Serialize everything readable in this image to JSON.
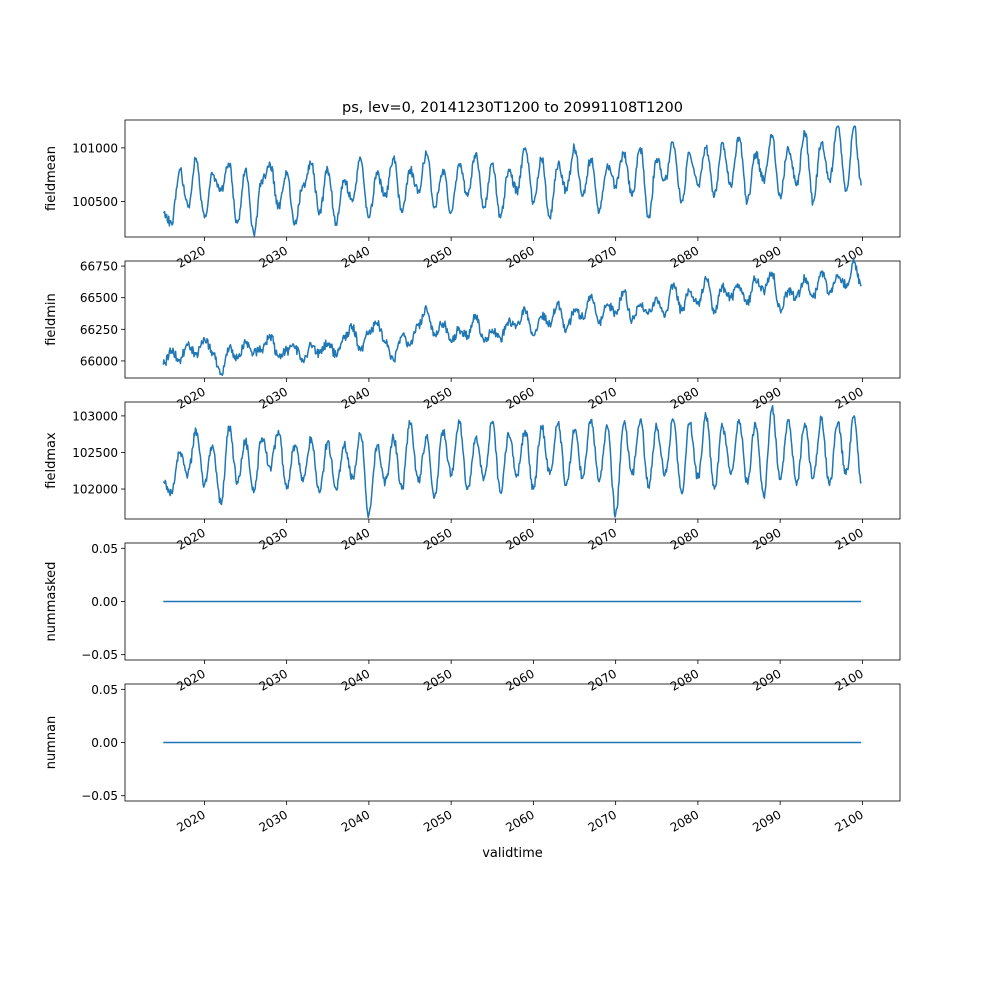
{
  "figure": {
    "title": "ps, lev=0, 20141230T1200 to 20991108T1200",
    "xlabel": "validtime",
    "line_color": "#1f77b4"
  },
  "chart_data": [
    {
      "type": "line",
      "ylabel": "fieldmean",
      "xlim": [
        "2010-05-08",
        "2104-07-29"
      ],
      "ylim": [
        100170,
        101260
      ],
      "yticks": [
        100500,
        101000
      ],
      "xticks": [
        "2020",
        "2030",
        "2040",
        "2050",
        "2060",
        "2070",
        "2080",
        "2090",
        "2100"
      ],
      "series": [
        {
          "x": [
            "2015-01-01",
            "2016-01-01",
            "2017-01-01",
            "2018-01-01",
            "2019-01-01",
            "2020-01-01",
            "2021-01-01",
            "2022-01-01",
            "2023-01-01",
            "2024-01-01",
            "2025-01-01",
            "2026-01-01",
            "2027-01-01",
            "2028-01-01",
            "2029-01-01",
            "2030-01-01",
            "2031-01-01",
            "2032-01-01",
            "2033-01-01",
            "2034-01-01",
            "2035-01-01",
            "2036-01-01",
            "2037-01-01",
            "2038-01-01",
            "2039-01-01",
            "2040-01-01",
            "2041-01-01",
            "2042-01-01",
            "2043-01-01",
            "2044-01-01",
            "2045-01-01",
            "2046-01-01",
            "2047-01-01",
            "2048-01-01",
            "2049-01-01",
            "2050-01-01",
            "2051-01-01",
            "2052-01-01",
            "2053-01-01",
            "2054-01-01",
            "2055-01-01",
            "2056-01-01",
            "2057-01-01",
            "2058-01-01",
            "2059-01-01",
            "2060-01-01",
            "2061-01-01",
            "2062-01-01",
            "2063-01-01",
            "2064-01-01",
            "2065-01-01",
            "2066-01-01",
            "2067-01-01",
            "2068-01-01",
            "2069-01-01",
            "2070-01-01",
            "2071-01-01",
            "2072-01-01",
            "2073-01-01",
            "2074-01-01",
            "2075-01-01",
            "2076-01-01",
            "2077-01-01",
            "2078-01-01",
            "2079-01-01",
            "2080-01-01",
            "2081-01-01",
            "2082-01-01",
            "2083-01-01",
            "2084-01-01",
            "2085-01-01",
            "2086-01-01",
            "2087-01-01",
            "2088-01-01",
            "2089-01-01",
            "2090-01-01",
            "2091-01-01",
            "2092-01-01",
            "2093-01-01",
            "2094-01-01",
            "2095-01-01",
            "2096-01-01",
            "2097-01-01",
            "2098-01-01",
            "2099-01-01",
            "2099-11-08"
          ],
          "values": [
            100400,
            100300,
            100800,
            100450,
            100900,
            100350,
            100750,
            100600,
            100850,
            100300,
            100800,
            100200,
            100700,
            100850,
            100450,
            100750,
            100300,
            100650,
            100850,
            100400,
            100800,
            100300,
            100700,
            100500,
            100900,
            100350,
            100750,
            100550,
            100900,
            100400,
            100800,
            100600,
            100950,
            100450,
            100800,
            100400,
            100850,
            100550,
            100950,
            100450,
            100850,
            100350,
            100800,
            100600,
            101000,
            100500,
            100900,
            100350,
            100850,
            100600,
            101000,
            100550,
            100900,
            100400,
            100850,
            100650,
            100950,
            100550,
            101000,
            100350,
            100900,
            100700,
            101050,
            100500,
            100950,
            100650,
            101000,
            100550,
            101050,
            100650,
            101100,
            100500,
            100950,
            100700,
            101100,
            100550,
            101000,
            100650,
            101150,
            100500,
            101050,
            100700,
            101200,
            100600,
            101200,
            100650
          ]
        }
      ]
    },
    {
      "type": "line",
      "ylabel": "fieldmin",
      "xlim": [
        "2010-05-08",
        "2104-07-29"
      ],
      "ylim": [
        65865,
        66790
      ],
      "yticks": [
        66000,
        66250,
        66500,
        66750
      ],
      "xticks": [
        "2020",
        "2030",
        "2040",
        "2050",
        "2060",
        "2070",
        "2080",
        "2090",
        "2100"
      ],
      "series": [
        {
          "x": [
            "2015-01-01",
            "2016-01-01",
            "2017-01-01",
            "2018-01-01",
            "2019-01-01",
            "2020-01-01",
            "2021-01-01",
            "2022-01-01",
            "2023-01-01",
            "2024-01-01",
            "2025-01-01",
            "2026-01-01",
            "2027-01-01",
            "2028-01-01",
            "2029-01-01",
            "2030-01-01",
            "2031-01-01",
            "2032-01-01",
            "2033-01-01",
            "2034-01-01",
            "2035-01-01",
            "2036-01-01",
            "2037-01-01",
            "2038-01-01",
            "2039-01-01",
            "2040-01-01",
            "2041-01-01",
            "2042-01-01",
            "2043-01-01",
            "2044-01-01",
            "2045-01-01",
            "2046-01-01",
            "2047-01-01",
            "2048-01-01",
            "2049-01-01",
            "2050-01-01",
            "2051-01-01",
            "2052-01-01",
            "2053-01-01",
            "2054-01-01",
            "2055-01-01",
            "2056-01-01",
            "2057-01-01",
            "2058-01-01",
            "2059-01-01",
            "2060-01-01",
            "2061-01-01",
            "2062-01-01",
            "2063-01-01",
            "2064-01-01",
            "2065-01-01",
            "2066-01-01",
            "2067-01-01",
            "2068-01-01",
            "2069-01-01",
            "2070-01-01",
            "2071-01-01",
            "2072-01-01",
            "2073-01-01",
            "2074-01-01",
            "2075-01-01",
            "2076-01-01",
            "2077-01-01",
            "2078-01-01",
            "2079-01-01",
            "2080-01-01",
            "2081-01-01",
            "2082-01-01",
            "2083-01-01",
            "2084-01-01",
            "2085-01-01",
            "2086-01-01",
            "2087-01-01",
            "2088-01-01",
            "2089-01-01",
            "2090-01-01",
            "2091-01-01",
            "2092-01-01",
            "2093-01-01",
            "2094-01-01",
            "2095-01-01",
            "2096-01-01",
            "2097-01-01",
            "2098-01-01",
            "2099-01-01",
            "2099-11-08"
          ],
          "values": [
            65970,
            66080,
            66010,
            66130,
            66050,
            66180,
            66070,
            65900,
            66100,
            66020,
            66150,
            66060,
            66090,
            66200,
            66030,
            66080,
            66100,
            66000,
            66120,
            66060,
            66140,
            66050,
            66180,
            66270,
            66080,
            66230,
            66300,
            66150,
            66000,
            66200,
            66120,
            66280,
            66420,
            66200,
            66300,
            66150,
            66250,
            66200,
            66350,
            66150,
            66250,
            66180,
            66320,
            66280,
            66400,
            66200,
            66350,
            66300,
            66450,
            66250,
            66400,
            66350,
            66500,
            66300,
            66450,
            66380,
            66550,
            66320,
            66450,
            66380,
            66500,
            66350,
            66600,
            66400,
            66550,
            66450,
            66650,
            66400,
            66580,
            66500,
            66600,
            66450,
            66650,
            66550,
            66700,
            66400,
            66550,
            66500,
            66650,
            66500,
            66700,
            66550,
            66680,
            66600,
            66780,
            66590
          ]
        }
      ]
    },
    {
      "type": "line",
      "ylabel": "fieldmax",
      "xlim": [
        "2010-05-08",
        "2104-07-29"
      ],
      "ylim": [
        101590,
        103190
      ],
      "yticks": [
        102000,
        102500,
        103000
      ],
      "xticks": [
        "2020",
        "2030",
        "2040",
        "2050",
        "2060",
        "2070",
        "2080",
        "2090",
        "2100"
      ],
      "series": [
        {
          "x": [
            "2015-01-01",
            "2016-01-01",
            "2017-01-01",
            "2018-01-01",
            "2019-01-01",
            "2020-01-01",
            "2021-01-01",
            "2022-01-01",
            "2023-01-01",
            "2024-01-01",
            "2025-01-01",
            "2026-01-01",
            "2027-01-01",
            "2028-01-01",
            "2029-01-01",
            "2030-01-01",
            "2031-01-01",
            "2032-01-01",
            "2033-01-01",
            "2034-01-01",
            "2035-01-01",
            "2036-01-01",
            "2037-01-01",
            "2038-01-01",
            "2039-01-01",
            "2040-01-01",
            "2041-01-01",
            "2042-01-01",
            "2043-01-01",
            "2044-01-01",
            "2045-01-01",
            "2046-01-01",
            "2047-01-01",
            "2048-01-01",
            "2049-01-01",
            "2050-01-01",
            "2051-01-01",
            "2052-01-01",
            "2053-01-01",
            "2054-01-01",
            "2055-01-01",
            "2056-01-01",
            "2057-01-01",
            "2058-01-01",
            "2059-01-01",
            "2060-01-01",
            "2061-01-01",
            "2062-01-01",
            "2063-01-01",
            "2064-01-01",
            "2065-01-01",
            "2066-01-01",
            "2067-01-01",
            "2068-01-01",
            "2069-01-01",
            "2070-01-01",
            "2071-01-01",
            "2072-01-01",
            "2073-01-01",
            "2074-01-01",
            "2075-01-01",
            "2076-01-01",
            "2077-01-01",
            "2078-01-01",
            "2079-01-01",
            "2080-01-01",
            "2081-01-01",
            "2082-01-01",
            "2083-01-01",
            "2084-01-01",
            "2085-01-01",
            "2086-01-01",
            "2087-01-01",
            "2088-01-01",
            "2089-01-01",
            "2090-01-01",
            "2091-01-01",
            "2092-01-01",
            "2093-01-01",
            "2094-01-01",
            "2095-01-01",
            "2096-01-01",
            "2097-01-01",
            "2098-01-01",
            "2099-01-01",
            "2099-11-08"
          ],
          "values": [
            102100,
            101950,
            102500,
            102200,
            102800,
            102050,
            102600,
            101800,
            102850,
            102100,
            102650,
            101950,
            102700,
            102300,
            102800,
            102000,
            102600,
            102100,
            102700,
            101950,
            102650,
            102000,
            102600,
            102150,
            102750,
            101650,
            102600,
            102100,
            102700,
            102000,
            102900,
            102100,
            102700,
            101900,
            102800,
            102200,
            102900,
            102000,
            102700,
            102150,
            102900,
            101950,
            102750,
            102200,
            102800,
            102000,
            102850,
            102200,
            102900,
            102050,
            102800,
            102150,
            102950,
            102100,
            102850,
            101650,
            102900,
            102200,
            102950,
            102050,
            102850,
            102200,
            102950,
            101950,
            102900,
            102150,
            103000,
            102000,
            102850,
            102200,
            102950,
            102100,
            102900,
            101900,
            103100,
            102150,
            102950,
            102050,
            102900,
            102150,
            102950,
            102050,
            102900,
            102200,
            103000,
            102100
          ]
        }
      ]
    },
    {
      "type": "line",
      "ylabel": "nummasked",
      "xlim": [
        "2010-05-08",
        "2104-07-29"
      ],
      "ylim": [
        -0.055,
        0.055
      ],
      "yticks": [
        -0.05,
        0.0,
        0.05
      ],
      "xticks": [
        "2020",
        "2030",
        "2040",
        "2050",
        "2060",
        "2070",
        "2080",
        "2090",
        "2100"
      ],
      "series": [
        {
          "x": [
            "2015-01-01",
            "2099-11-08"
          ],
          "values": [
            0,
            0
          ]
        }
      ]
    },
    {
      "type": "line",
      "ylabel": "numnan",
      "xlim": [
        "2010-05-08",
        "2104-07-29"
      ],
      "ylim": [
        -0.055,
        0.055
      ],
      "yticks": [
        -0.05,
        0.0,
        0.05
      ],
      "xticks": [
        "2020",
        "2030",
        "2040",
        "2050",
        "2060",
        "2070",
        "2080",
        "2090",
        "2100"
      ],
      "series": [
        {
          "x": [
            "2015-01-01",
            "2099-11-08"
          ],
          "values": [
            0,
            0
          ]
        }
      ]
    }
  ],
  "ytick_labels": [
    [
      "100500",
      "101000"
    ],
    [
      "66000",
      "66250",
      "66500",
      "66750"
    ],
    [
      "102000",
      "102500",
      "103000"
    ],
    [
      "−0.05",
      "0.00",
      "0.05"
    ],
    [
      "−0.05",
      "0.00",
      "0.05"
    ]
  ]
}
